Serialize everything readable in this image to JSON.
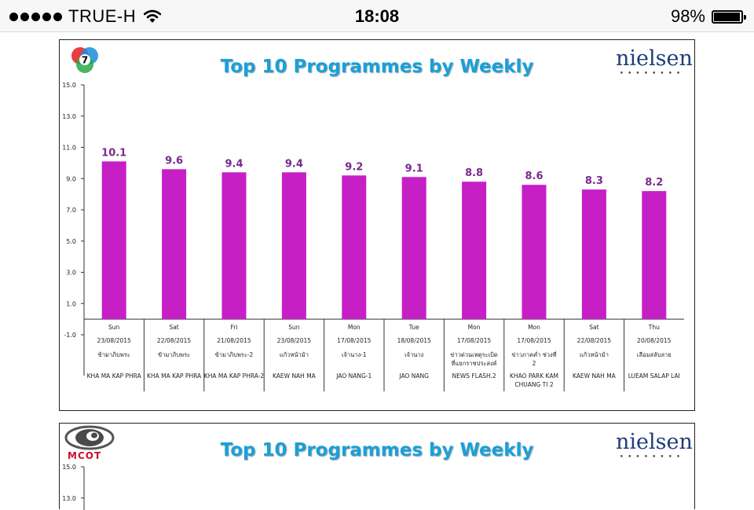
{
  "status_bar": {
    "carrier": "TRUE-H",
    "time": "18:08",
    "battery": "98%",
    "battery_level": 0.98
  },
  "chart_data": [
    {
      "type": "bar",
      "title": "Top 10 Programmes by Weekly",
      "brand": "nielsen",
      "channel_logo": "7",
      "bar_color": "#c61fc6",
      "label_color": "#7a2a8c",
      "ylim": [
        -1.0,
        15.0
      ],
      "y_ticks": [
        "15.0",
        "13.0",
        "11.0",
        "9.0",
        "7.0",
        "5.0",
        "3.0",
        "1.0",
        "-1.0"
      ],
      "y_tick_values": [
        15,
        13,
        11,
        9,
        7,
        5,
        3,
        1,
        -1
      ],
      "values": [
        10.1,
        9.6,
        9.4,
        9.4,
        9.2,
        9.1,
        8.8,
        8.6,
        8.3,
        8.2
      ],
      "value_labels": [
        "10.1",
        "9.6",
        "9.4",
        "9.4",
        "9.2",
        "9.1",
        "8.8",
        "8.6",
        "8.3",
        "8.2"
      ],
      "categories": [
        {
          "day": "Sun",
          "date": "23/08/2015",
          "thai": "ข้ามาภิบพระ",
          "english": "KHA MA KAP PHRA"
        },
        {
          "day": "Sat",
          "date": "22/08/2015",
          "thai": "ข้ามาภิบพระ",
          "english": "KHA MA KAP PHRA"
        },
        {
          "day": "Fri",
          "date": "21/08/2015",
          "thai": "ข้ามาภิบพระ-2",
          "english": "KHA MA KAP PHRA-2"
        },
        {
          "day": "Sun",
          "date": "23/08/2015",
          "thai": "แก้วหน้าม้า",
          "english": "KAEW NAH MA"
        },
        {
          "day": "Mon",
          "date": "17/08/2015",
          "thai": "เจ้านาง-1",
          "english": "JAO NANG-1"
        },
        {
          "day": "Tue",
          "date": "18/08/2015",
          "thai": "เจ้านาง",
          "english": "JAO NANG"
        },
        {
          "day": "Mon",
          "date": "17/08/2015",
          "thai": "ข่าวด่วนเหตุระเบิดที่แยกราชประสงค์",
          "english": "NEWS FLASH.2"
        },
        {
          "day": "Mon",
          "date": "17/08/2015",
          "thai": "ข่าวภาคค่ำ ช่วงที่ 2",
          "english": "KHAO PARK KAM CHUANG TI 2"
        },
        {
          "day": "Sat",
          "date": "22/08/2015",
          "thai": "แก้วหน้าม้า",
          "english": "KAEW NAH MA"
        },
        {
          "day": "Thu",
          "date": "20/08/2015",
          "thai": "เลือมสลับลาย",
          "english": "LUEAM SALAP LAI"
        }
      ]
    },
    {
      "type": "bar",
      "title": "Top 10 Programmes by Weekly",
      "brand": "nielsen",
      "channel_logo": "MCOT",
      "y_ticks": [
        "15.0",
        "13.0"
      ],
      "y_tick_values": [
        15,
        13
      ]
    }
  ]
}
